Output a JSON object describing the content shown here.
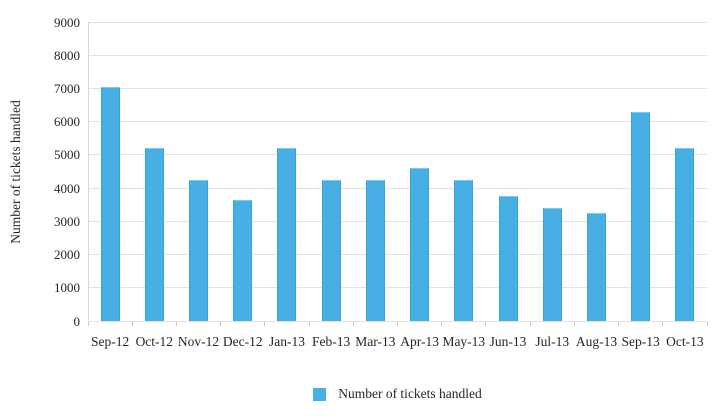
{
  "chart_data": {
    "type": "bar",
    "title": "",
    "categories": [
      "Sep-12",
      "Oct-12",
      "Nov-12",
      "Dec-12",
      "Jan-13",
      "Feb-13",
      "Mar-13",
      "Apr-13",
      "May-13",
      "Jun-13",
      "Jul-13",
      "Aug-13",
      "Sep-13",
      "Oct-13"
    ],
    "values": [
      7050,
      5200,
      4250,
      3650,
      5200,
      4250,
      4250,
      4600,
      4250,
      3750,
      3400,
      3250,
      6300,
      5200
    ],
    "xlabel": "",
    "ylabel": "Number of tickets handled",
    "ylim": [
      0,
      9000
    ],
    "ytick_step": 1000,
    "grid": true,
    "legend": {
      "position": "bottom",
      "label": "Number of tickets handled"
    }
  },
  "colors": {
    "bar_fill": "#47AFE3",
    "bar_edge_dark": "#35A5DC",
    "bar_edge_light": "#7EC8EE",
    "gridline": "#E2E2E2",
    "axis_line": "#D8D8D8",
    "text": "#262626",
    "background": "#FFFFFF"
  }
}
